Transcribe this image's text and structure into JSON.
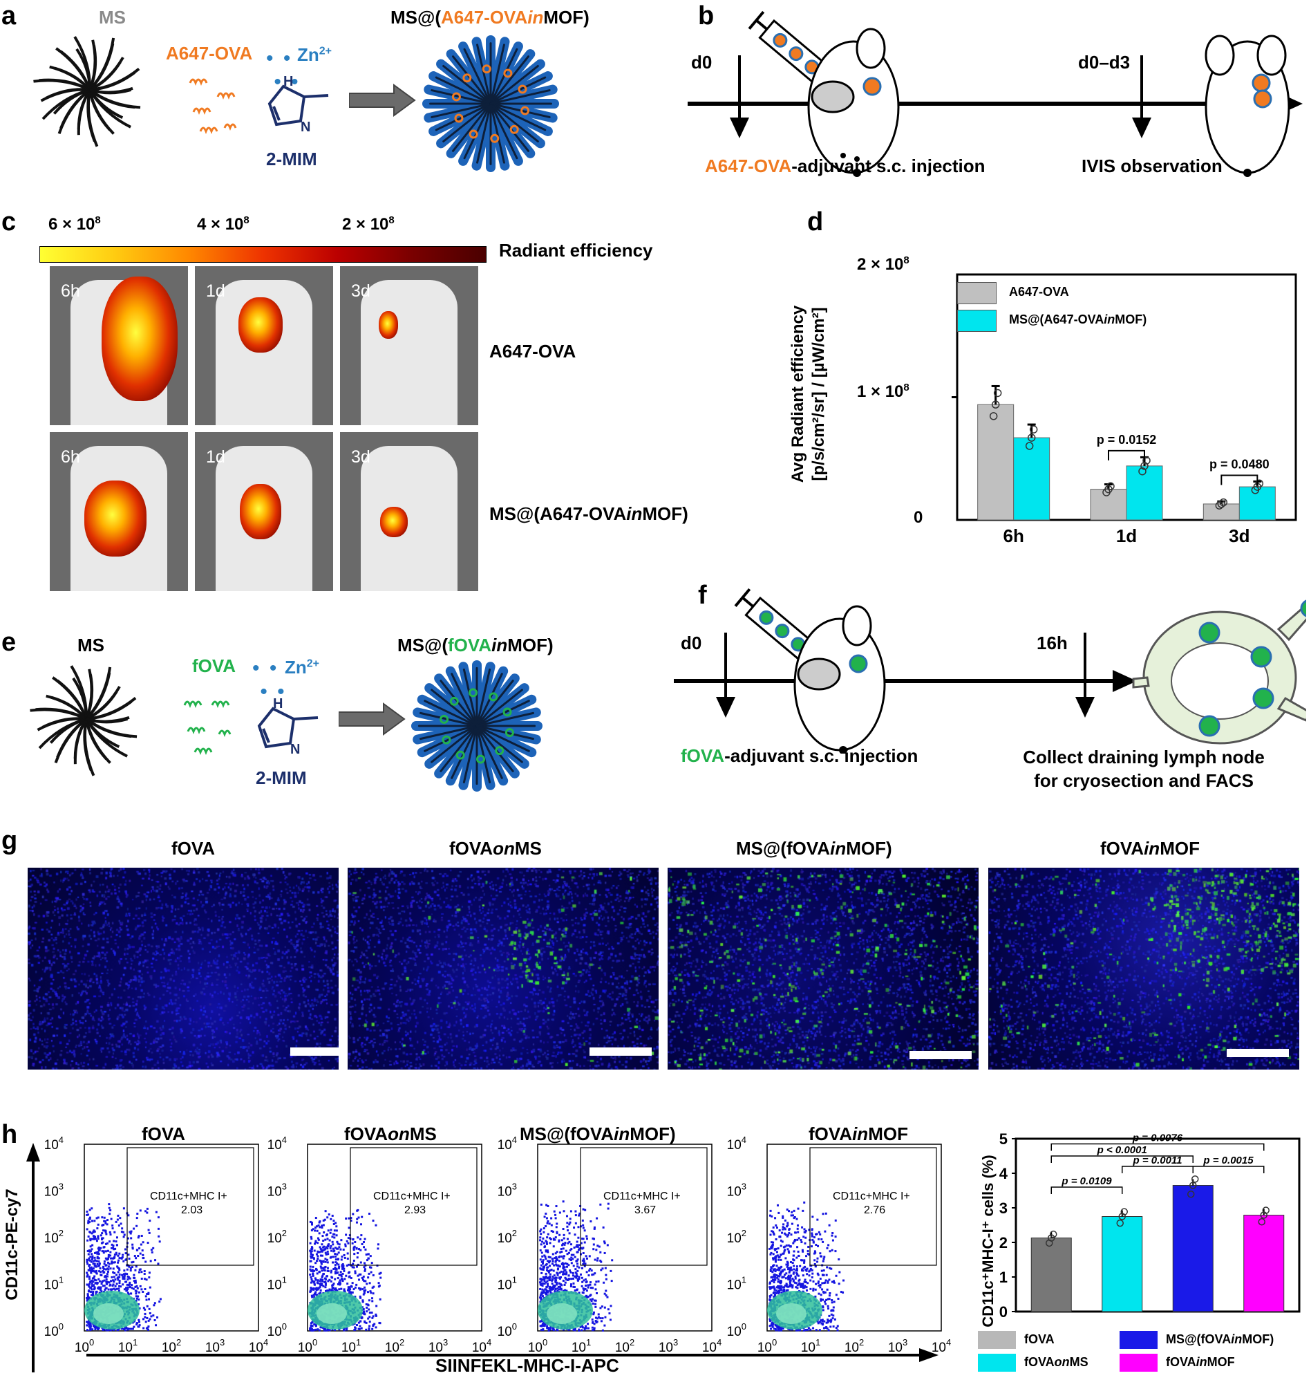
{
  "panels": {
    "a": {
      "label": "a",
      "ms_label": "MS",
      "protein_label": "A647-OVA",
      "zn_label": "Zn",
      "zn_sup": "2+",
      "linker_label": "2-MIM",
      "product_label_pre": "MS@(",
      "product_label_protein": "A647-OVA",
      "product_label_in": "in",
      "product_label_post": "MOF)"
    },
    "b": {
      "label": "b",
      "day_start": "d0",
      "day_range": "d0–d3",
      "injection_protein": "A647-OVA",
      "injection_text": "-adjuvant s.c. injection",
      "observation": "IVIS observation"
    },
    "c": {
      "label": "c",
      "scale_ticks": [
        "6 × 10",
        "4 × 10",
        "2 × 10"
      ],
      "scale_exp": "8",
      "scale_title": "Radiant efficiency",
      "row_labels": [
        "A647-OVA",
        "MS@(A647-OVAinMOF)"
      ],
      "row2_pre": "MS@(A647-OVA",
      "row2_in": "in",
      "row2_post": "MOF)",
      "timepoints": [
        "6h",
        "1d",
        "3d"
      ]
    },
    "d": {
      "label": "d",
      "ylabel_line1": "Avg Radiant efficiency",
      "ylabel_line2": "[p/s/cm²/sr] / [µW/cm²]",
      "yticks": [
        "2 × 10",
        "1 × 10",
        "0"
      ],
      "ytick_exp": "8",
      "legend": [
        "A647-OVA",
        "MS@(A647-OVAinMOF)"
      ],
      "legend2_pre": "MS@(A647-OVA",
      "legend2_in": "in",
      "legend2_post": "MOF)",
      "pvalues": [
        "p = 0.0152",
        "p = 0.0480"
      ]
    },
    "e": {
      "label": "e",
      "ms_label": "MS",
      "protein_label": "fOVA",
      "zn_label": "Zn",
      "zn_sup": "2+",
      "linker_label": "2-MIM",
      "product_pre": "MS@(",
      "product_protein": "fOVA",
      "product_in": "in",
      "product_post": "MOF)"
    },
    "f": {
      "label": "f",
      "day_start": "d0",
      "day_end": "16h",
      "injection_protein": "fOVA",
      "injection_text": "-adjuvant s.c. injection",
      "collect_line1": "Collect draining lymph node",
      "collect_line2": "for cryosection and FACS"
    },
    "g": {
      "label": "g",
      "titles": [
        "fOVA",
        "fOVAonMS",
        "MS@(fOVAinMOF)",
        "fOVAinMOF"
      ],
      "t2_pre": "fOVA",
      "t2_it": "on",
      "t2_post": "MS",
      "t3_pre": "MS@(fOVA",
      "t3_it": "in",
      "t3_post": "MOF)",
      "t4_pre": "fOVA",
      "t4_it": "in",
      "t4_post": "MOF"
    },
    "h": {
      "label": "h",
      "flow_titles": [
        "fOVA",
        "fOVAonMS",
        "MS@(fOVAinMOF)",
        "fOVAinMOF"
      ],
      "gate_label": "CD11c+MHC I+",
      "gate_values": [
        "2.03",
        "2.93",
        "3.67",
        "2.76"
      ],
      "flow_ticks": [
        "10",
        "10",
        "10",
        "10",
        "10"
      ],
      "flow_exps": [
        "0",
        "1",
        "2",
        "3",
        "4"
      ],
      "y_axis_title": "CD11c-PE-cy7",
      "x_axis_title": "SIINFEKL-MHC-I-APC",
      "bar_ylabel": "CD11c⁺MHC-I⁺ cells (%)",
      "bar_yticks": [
        "5",
        "4",
        "3",
        "2",
        "1",
        "0"
      ],
      "pvalues": [
        "p = 0.0076",
        "p < 0.0001",
        "p = 0.0011",
        "p = 0.0015",
        "p = 0.0109"
      ],
      "legend": [
        "fOVA",
        "fOVAonMS",
        "MS@(fOVAinMOF)",
        "fOVAinMOF"
      ]
    }
  },
  "chart_data": [
    {
      "type": "bar",
      "title": "",
      "xlabel": "",
      "ylabel": "Avg Radiant efficiency [p/s/cm²/sr] / [µW/cm²]",
      "categories": [
        "6h",
        "1d",
        "3d"
      ],
      "ylim": [
        0,
        200000000
      ],
      "series": [
        {
          "name": "A647-OVA",
          "color": "#c0c0c0",
          "values": [
            94000000,
            25000000,
            13000000
          ]
        },
        {
          "name": "MS@(A647-OVAinMOF)",
          "color": "#00e5ee",
          "values": [
            67000000,
            44000000,
            27000000
          ]
        }
      ]
    },
    {
      "type": "bar",
      "title": "",
      "xlabel": "",
      "ylabel": "CD11c⁺MHC-I⁺ cells (%)",
      "categories": [
        "fOVA",
        "fOVAonMS",
        "MS@(fOVAinMOF)",
        "fOVAinMOF"
      ],
      "ylim": [
        0,
        5
      ],
      "series": [
        {
          "name": "CD11c+MHC-I+ cells",
          "values": [
            2.13,
            2.75,
            3.65,
            2.79
          ],
          "colors": [
            "#777777",
            "#00e5ee",
            "#1a1ae8",
            "#ff00ff"
          ]
        }
      ]
    }
  ]
}
